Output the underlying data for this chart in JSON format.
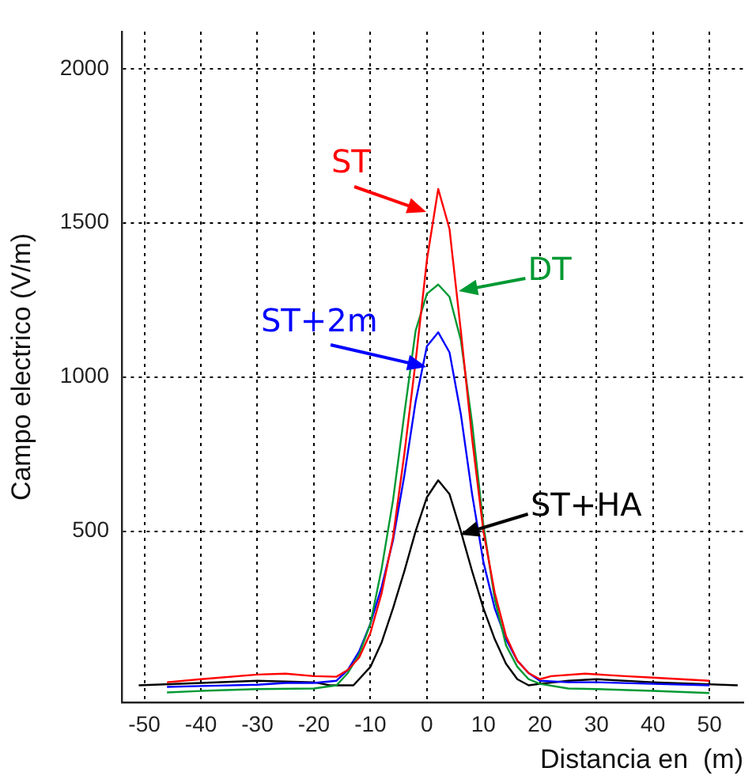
{
  "chart_data": {
    "type": "line",
    "xlabel": "Distancia en  (m)",
    "ylabel": "Campo electrico (V/m)",
    "xlim": [
      -54,
      56
    ],
    "ylim": [
      -55,
      2120
    ],
    "xticks": [
      -50,
      -40,
      -30,
      -20,
      -10,
      0,
      10,
      20,
      30,
      40,
      50
    ],
    "yticks": [
      500,
      1000,
      1500,
      2000
    ],
    "grid": true,
    "legend": false,
    "marker": "none",
    "line_style": "solid",
    "series": [
      {
        "color": "#ff0000",
        "x": [
          -46,
          -40,
          -30,
          -25,
          -20,
          -16,
          -14,
          -12,
          -10,
          -8,
          -6,
          -4,
          -2,
          0,
          2,
          4,
          6,
          8,
          10,
          12,
          14,
          16,
          18,
          20,
          22,
          28,
          35,
          40,
          50
        ],
        "values": [
          10,
          20,
          35,
          38,
          30,
          28,
          50,
          90,
          170,
          300,
          480,
          750,
          1050,
          1380,
          1610,
          1480,
          1150,
          800,
          500,
          300,
          160,
          80,
          40,
          20,
          30,
          38,
          30,
          25,
          15
        ]
      },
      {
        "color": "#009933",
        "x": [
          -46,
          -40,
          -30,
          -20,
          -16,
          -14,
          -12,
          -10,
          -8,
          -6,
          -4,
          -2,
          0,
          2,
          4,
          6,
          8,
          10,
          12,
          14,
          16,
          18,
          20,
          25,
          30,
          40,
          50
        ],
        "values": [
          -23,
          -18,
          -12,
          -10,
          0,
          40,
          100,
          200,
          380,
          600,
          880,
          1150,
          1270,
          1300,
          1260,
          1120,
          850,
          520,
          280,
          130,
          60,
          20,
          5,
          -10,
          -12,
          -18,
          -25
        ]
      },
      {
        "color": "#0000ff",
        "x": [
          -46,
          -40,
          -30,
          -25,
          -20,
          -16,
          -14,
          -12,
          -10,
          -8,
          -6,
          -4,
          -2,
          0,
          2,
          4,
          6,
          8,
          10,
          12,
          14,
          16,
          18,
          20,
          25,
          30,
          40,
          50
        ],
        "values": [
          -5,
          -2,
          2,
          8,
          8,
          15,
          50,
          110,
          200,
          320,
          470,
          680,
          920,
          1100,
          1145,
          1080,
          880,
          620,
          400,
          250,
          150,
          80,
          40,
          15,
          10,
          10,
          5,
          0
        ]
      },
      {
        "color": "#000000",
        "x": [
          -51,
          -40,
          -30,
          -20,
          -17,
          -13,
          -10,
          -8,
          -6,
          -4,
          -2,
          0,
          2,
          4,
          6,
          8,
          10,
          12,
          14,
          16,
          18,
          20,
          25,
          30,
          40,
          55
        ],
        "values": [
          0,
          8,
          15,
          10,
          0,
          0,
          60,
          140,
          250,
          370,
          500,
          610,
          665,
          620,
          500,
          370,
          250,
          150,
          70,
          20,
          0,
          5,
          15,
          20,
          10,
          0
        ]
      }
    ],
    "annotations": [
      {
        "text": "ST",
        "x": 0,
        "y": 1536
      },
      {
        "text": "DT",
        "x": 5.5,
        "y": 1280
      },
      {
        "text": "ST+2m",
        "x": 0,
        "y": 1030
      },
      {
        "text": "ST+HA",
        "x": 5.8,
        "y": 490
      }
    ]
  }
}
